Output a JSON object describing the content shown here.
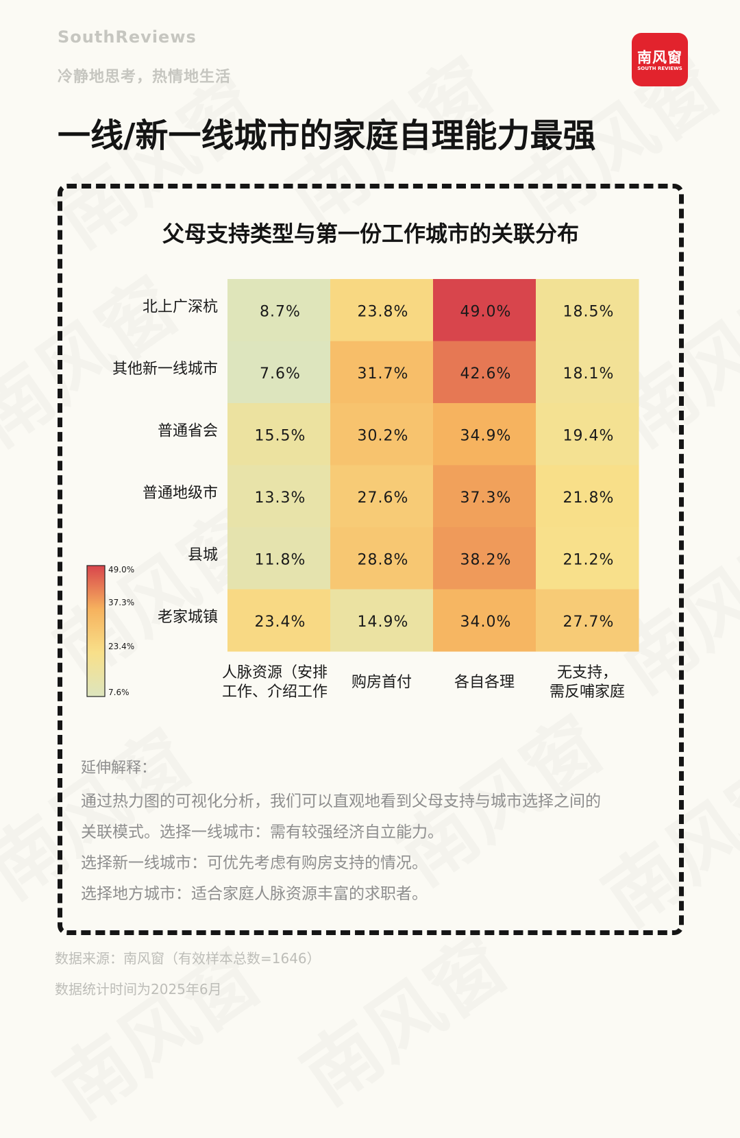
{
  "brand": {
    "name_en": "SouthReviews",
    "slogan": "冷静地思考，热情地生活",
    "logo_cn": "南风窗",
    "logo_en": "SOUTH REVIEWS",
    "watermark": "南风窗"
  },
  "page_title": "一线/新一线城市的家庭自理能力最强",
  "chart_data": {
    "type": "heatmap",
    "title": "父母支持类型与第一份工作城市的关联分布",
    "rows": [
      "北上广深杭",
      "其他新一线城市",
      "普通省会",
      "普通地级市",
      "县城",
      "老家城镇"
    ],
    "columns": [
      [
        "人脉资源（安排",
        "工作、介绍工作"
      ],
      [
        "购房首付"
      ],
      [
        "各自各理"
      ],
      [
        "无支持，",
        "需反哺家庭"
      ]
    ],
    "values": [
      [
        8.7,
        23.8,
        49.0,
        18.5
      ],
      [
        7.6,
        31.7,
        42.6,
        18.1
      ],
      [
        15.5,
        30.2,
        34.9,
        19.4
      ],
      [
        13.3,
        27.6,
        37.3,
        21.8
      ],
      [
        11.8,
        28.8,
        38.2,
        21.2
      ],
      [
        23.4,
        14.9,
        34.0,
        27.7
      ]
    ],
    "unit": "%",
    "colorbar": {
      "ticks": [
        "49.0%",
        "37.3%",
        "23.4%",
        "7.6%"
      ],
      "tick_values": [
        49.0,
        37.3,
        23.4,
        7.6
      ],
      "range": [
        7.6,
        49.0
      ],
      "colors": [
        "#dde5be",
        "#f8e08a",
        "#f6b25e",
        "#d8454c"
      ]
    }
  },
  "notes": {
    "heading": "延伸解释：",
    "lines": [
      "通过热力图的可视化分析，我们可以直观地看到父母支持与城市选择之间的",
      "关联模式。选择一线城市：需有较强经济自立能力。",
      "选择新一线城市：可优先考虑有购房支持的情况。",
      "选择地方城市：适合家庭人脉资源丰富的求职者。"
    ]
  },
  "source": {
    "line1": "数据来源：南风窗（有效样本总数=1646）",
    "line2": "数据统计时间为2025年6月"
  }
}
